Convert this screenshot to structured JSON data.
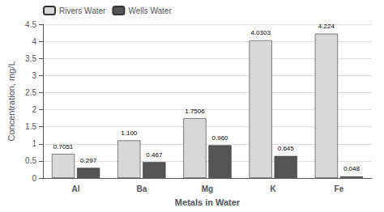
{
  "chart_data": {
    "type": "bar",
    "categories": [
      "Al",
      "Ba",
      "Mg",
      "K",
      "Fe"
    ],
    "series": [
      {
        "name": "Rivers Water",
        "color": "#d8d8d8",
        "values": [
          0.7051,
          1.1,
          1.7506,
          4.0303,
          4.224
        ],
        "value_labels": [
          "0.7051",
          "1.100",
          "1.7506",
          "4.0303",
          "4.224"
        ]
      },
      {
        "name": "Wells Water",
        "color": "#555555",
        "values": [
          0.297,
          0.467,
          0.96,
          0.645,
          0.048
        ],
        "value_labels": [
          "0.297",
          "0.467",
          "0.960",
          "0.645",
          "0.048"
        ]
      }
    ],
    "xlabel": "Metals in Water",
    "ylabel": "Concentration, mg/L",
    "ylim": [
      0,
      4.5
    ],
    "yticks": [
      0,
      0.5,
      1,
      1.5,
      2,
      2.5,
      3,
      3.5,
      4,
      4.5
    ],
    "grid": true,
    "legend": "upper left",
    "data_labels": true
  }
}
